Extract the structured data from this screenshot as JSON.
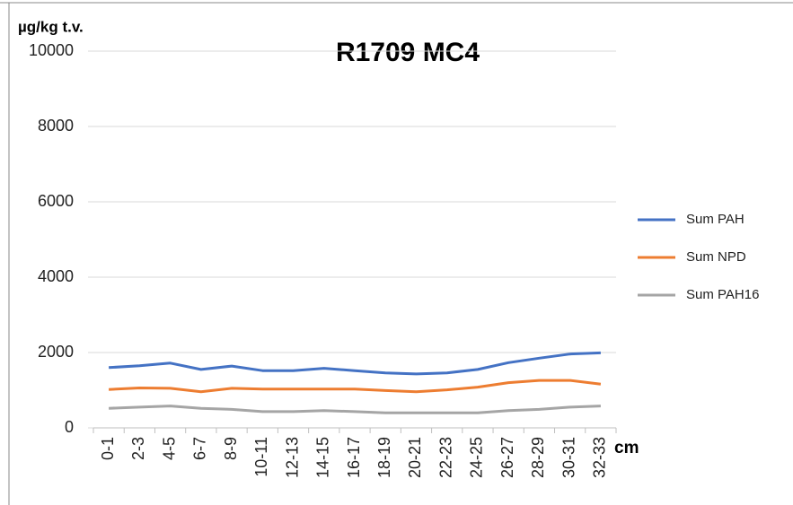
{
  "chart_data": {
    "type": "line",
    "title": "R1709 MC4",
    "y_label": "µg/kg t.v.",
    "x_label": "cm",
    "categories": [
      "0-1",
      "2-3",
      "4-5",
      "6-7",
      "8-9",
      "10-11",
      "12-13",
      "14-15",
      "16-17",
      "18-19",
      "20-21",
      "22-23",
      "24-25",
      "26-27",
      "28-29",
      "30-31",
      "32-33"
    ],
    "series": [
      {
        "name": "Sum PAH",
        "color": "#4472c4",
        "values": [
          1600,
          1650,
          1720,
          1550,
          1640,
          1520,
          1520,
          1580,
          1520,
          1460,
          1430,
          1460,
          1550,
          1730,
          1850,
          1960,
          1990
        ]
      },
      {
        "name": "Sum NPD",
        "color": "#ed7d31",
        "values": [
          1020,
          1060,
          1050,
          960,
          1050,
          1030,
          1030,
          1030,
          1030,
          990,
          960,
          1010,
          1080,
          1200,
          1260,
          1260,
          1160
        ]
      },
      {
        "name": "Sum PAH16",
        "color": "#a5a5a5",
        "values": [
          520,
          550,
          580,
          520,
          490,
          430,
          430,
          460,
          430,
          400,
          400,
          400,
          400,
          460,
          490,
          550,
          580
        ]
      }
    ],
    "ylim": [
      0,
      10000
    ],
    "yticks": [
      0,
      2000,
      4000,
      6000,
      8000,
      10000
    ],
    "grid": true,
    "legend": "right"
  }
}
